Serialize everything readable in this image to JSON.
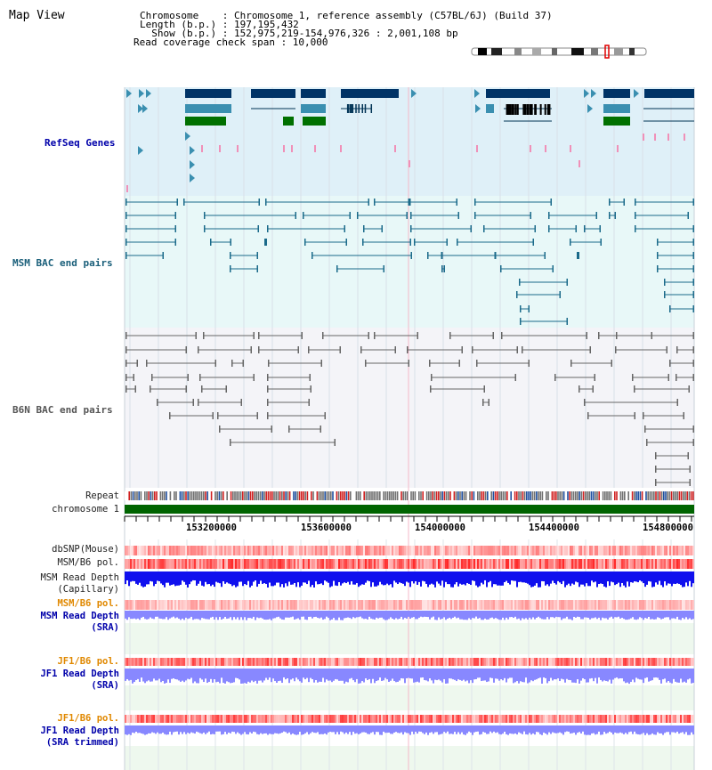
{
  "view": {
    "title": "Map View"
  },
  "header": {
    "line1": "Chromosome    : Chromosome 1, reference assembly (C57BL/6J) (Build 37)",
    "line2": "Length (b.p.) : 197,195,432",
    "line3": "  Show (b.p.) : 152,975,219-154,976,326 : 2,001,108 bp",
    "line4": "Read coverage check span : 10,000"
  },
  "tracks": {
    "refseq": "RefSeq Genes",
    "msm_bac": "MSM BAC end pairs",
    "b6n_bac": "B6N BAC end pairs",
    "repeat": "Repeat",
    "chromosome": "chromosome 1",
    "dbsnp": "dbSNP(Mouse)",
    "msm_b6_pol": "MSM/B6 pol.",
    "msm_read_depth_cap_1": "MSM Read Depth",
    "msm_read_depth_cap_2": "(Capillary)",
    "msm_b6_pol2": "MSM/B6 pol.",
    "msm_read_depth_sra_1": "MSM Read Depth",
    "msm_read_depth_sra_2": "(SRA)",
    "jf1_b6_pol": "JF1/B6 pol.",
    "jf1_read_depth_sra_1": "JF1 Read Depth",
    "jf1_read_depth_sra_2": "(SRA)",
    "jf1_b6_pol2": "JF1/B6 pol.",
    "jf1_read_depth_trim_1": "JF1 Read Depth",
    "jf1_read_depth_trim_2": "(SRA trimmed)"
  },
  "axis": {
    "ticks": [
      "153200000",
      "153600000",
      "154000000",
      "154400000",
      "154800000"
    ]
  },
  "colors": {
    "refseq_bg": "#dff0f8",
    "msm_bg": "#e8f8f8",
    "b6n_bg": "#f4f4f8",
    "chrom_green": "#006400",
    "gene_navy": "#003366",
    "gene_teal": "#3a8fb0",
    "gene_green": "#007000",
    "read_blue": "#1010ee",
    "read_light": "#8888ff",
    "pol_red": "#ee3333"
  }
}
